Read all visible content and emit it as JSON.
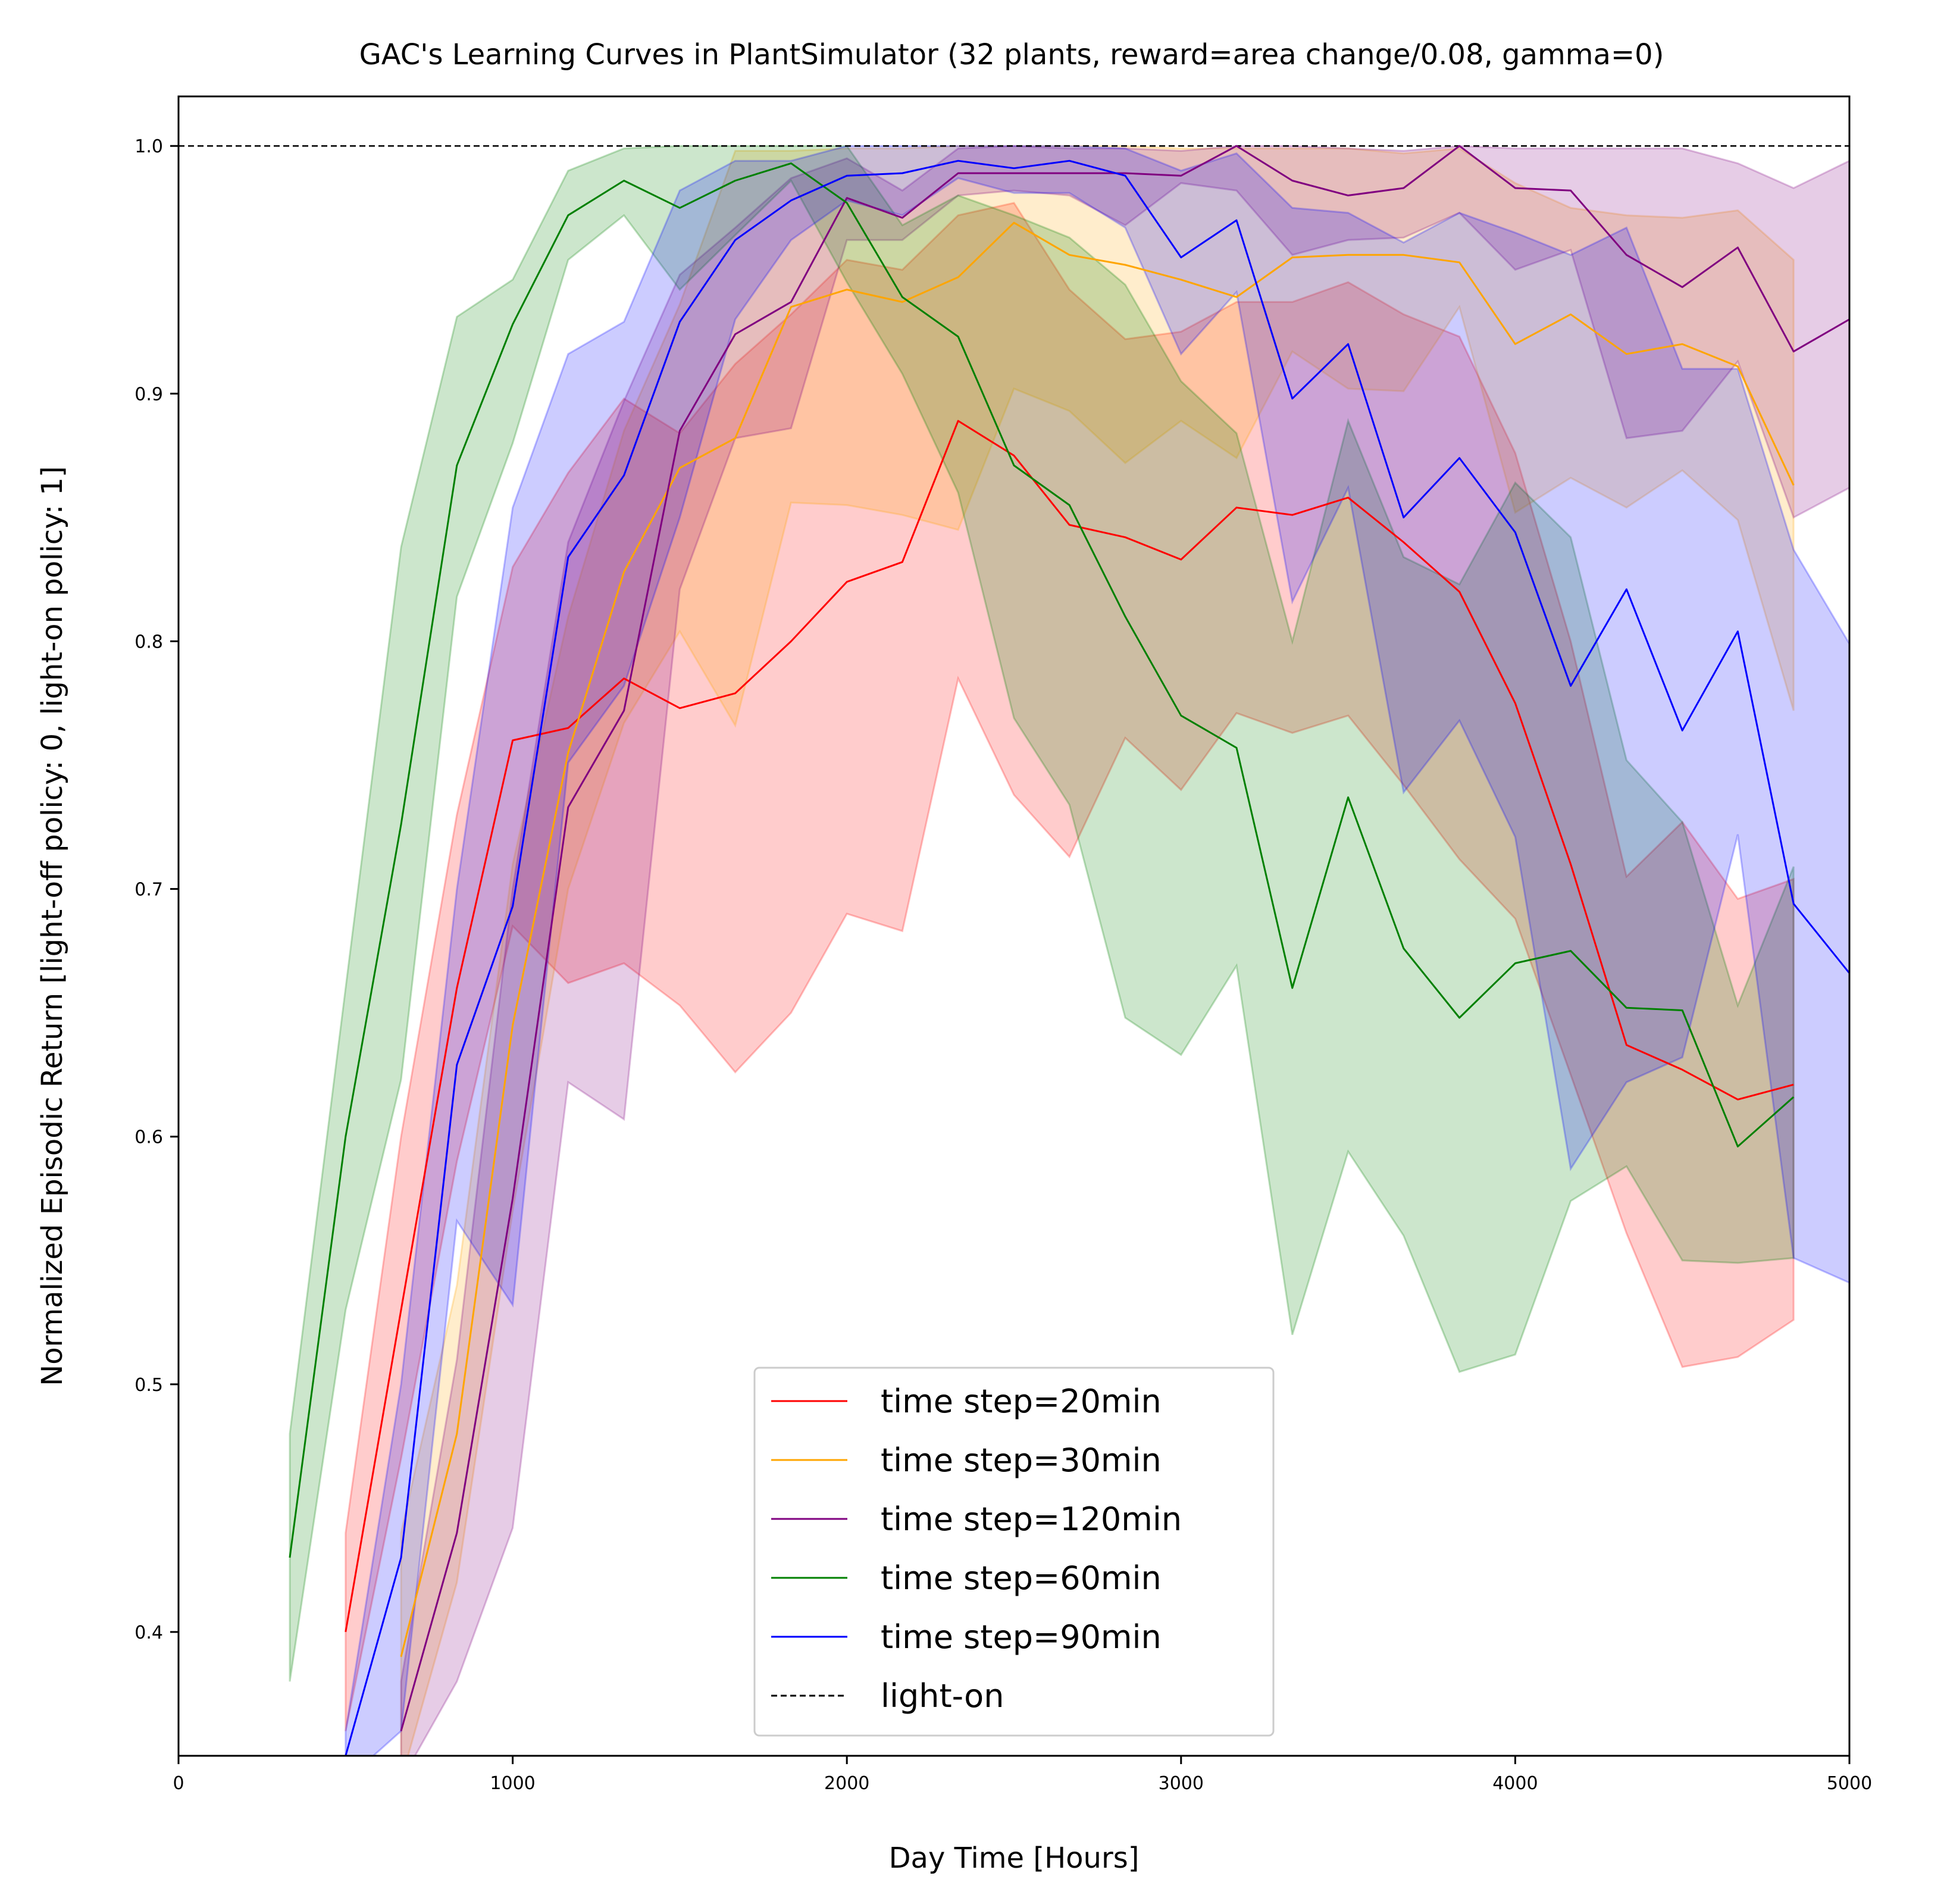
{
  "chart_data": {
    "type": "line",
    "title": "GAC's Learning Curves in PlantSimulator (32 plants, reward=area change/0.08, gamma=0)",
    "xlabel": "Day Time [Hours]",
    "ylabel": "Normalized Episodic Return [light-off policy: 0, light-on policy: 1]",
    "xlim": [
      0,
      5000
    ],
    "ylim": [
      0.35,
      1.02
    ],
    "xticks": [
      0,
      1000,
      2000,
      3000,
      4000,
      5000
    ],
    "yticks": [
      0.4,
      0.5,
      0.6,
      0.7,
      0.8,
      0.9,
      1.0
    ],
    "x_tick_labels": [
      "0",
      "1000",
      "2000",
      "3000",
      "4000",
      "5000"
    ],
    "y_tick_labels": [
      "0.4",
      "0.5",
      "0.6",
      "0.7",
      "0.8",
      "0.9",
      "1.0"
    ],
    "grid": false,
    "legend_position": "lower-center",
    "reference_line": {
      "name": "light-on",
      "y": 1.0,
      "color": "#000000",
      "style": "dashed"
    },
    "x": [
      166,
      333,
      500,
      666,
      833,
      1000,
      1166,
      1333,
      1500,
      1666,
      1833,
      2000,
      2166,
      2333,
      2500,
      2666,
      2833,
      3000,
      3166,
      3333,
      3500,
      3666,
      3833,
      4000,
      4166,
      4333,
      4500,
      4666,
      4833,
      5000
    ],
    "series": [
      {
        "name": "time step=20min",
        "color": "#ff0000",
        "values": [
          null,
          null,
          0.4,
          0.53,
          0.66,
          0.76,
          0.765,
          0.785,
          0.773,
          0.779,
          0.8,
          0.824,
          0.832,
          0.889,
          0.875,
          0.847,
          0.842,
          0.833,
          0.854,
          0.851,
          0.858,
          0.84,
          0.82,
          0.775,
          0.71,
          0.637,
          0.627,
          0.615,
          0.621,
          null
        ],
        "lower": [
          null,
          null,
          0.36,
          0.47,
          0.59,
          0.685,
          0.662,
          0.67,
          0.653,
          0.626,
          0.65,
          0.69,
          0.683,
          0.785,
          0.738,
          0.713,
          0.761,
          0.74,
          0.771,
          0.763,
          0.77,
          0.742,
          0.712,
          0.688,
          0.625,
          0.561,
          0.507,
          0.511,
          0.526,
          null
        ],
        "upper": [
          null,
          null,
          0.44,
          0.6,
          0.73,
          0.83,
          0.868,
          0.898,
          0.884,
          0.912,
          0.932,
          0.954,
          0.95,
          0.972,
          0.977,
          0.942,
          0.922,
          0.925,
          0.937,
          0.937,
          0.945,
          0.932,
          0.923,
          0.876,
          0.8,
          0.705,
          0.727,
          0.696,
          0.704,
          null
        ]
      },
      {
        "name": "time step=30min",
        "color": "#ffa500",
        "values": [
          null,
          null,
          null,
          0.39,
          0.48,
          0.645,
          0.755,
          0.828,
          0.87,
          0.882,
          0.935,
          0.942,
          0.937,
          0.947,
          0.969,
          0.956,
          0.952,
          0.946,
          0.939,
          0.955,
          0.956,
          0.956,
          0.953,
          0.92,
          0.932,
          0.916,
          0.92,
          0.911,
          0.863,
          null
        ],
        "lower": [
          null,
          null,
          null,
          0.34,
          0.42,
          0.57,
          0.7,
          0.767,
          0.804,
          0.766,
          0.856,
          0.855,
          0.851,
          0.845,
          0.902,
          0.893,
          0.872,
          0.889,
          0.874,
          0.917,
          0.902,
          0.901,
          0.935,
          0.852,
          0.866,
          0.854,
          0.869,
          0.849,
          0.772,
          null
        ],
        "upper": [
          null,
          null,
          null,
          0.44,
          0.54,
          0.71,
          0.81,
          0.885,
          0.936,
          0.998,
          0.998,
          0.999,
          0.999,
          1.0,
          1.0,
          1.0,
          1.0,
          0.999,
          0.999,
          0.999,
          0.999,
          0.997,
          0.999,
          0.985,
          0.975,
          0.972,
          0.971,
          0.974,
          0.954,
          null
        ]
      },
      {
        "name": "time step=120min",
        "color": "#800080",
        "values": [
          null,
          null,
          null,
          0.36,
          0.44,
          0.575,
          0.733,
          0.772,
          0.885,
          0.924,
          0.937,
          0.979,
          0.971,
          0.989,
          0.989,
          0.989,
          0.989,
          0.988,
          1.0,
          0.986,
          0.98,
          0.983,
          1.0,
          0.983,
          0.982,
          0.956,
          0.943,
          0.959,
          0.917,
          0.93
        ],
        "lower": [
          null,
          null,
          null,
          0.34,
          0.38,
          0.442,
          0.622,
          0.607,
          0.821,
          0.882,
          0.886,
          0.962,
          0.962,
          0.98,
          0.982,
          0.98,
          0.968,
          0.985,
          0.982,
          0.956,
          0.962,
          0.963,
          0.973,
          0.95,
          0.958,
          0.882,
          0.885,
          0.913,
          0.85,
          0.862
        ],
        "upper": [
          null,
          null,
          null,
          0.38,
          0.51,
          0.7,
          0.84,
          0.897,
          0.948,
          0.967,
          0.987,
          0.995,
          0.982,
          0.999,
          1.0,
          0.999,
          0.999,
          0.998,
          1.0,
          1.0,
          0.999,
          0.998,
          1.0,
          0.999,
          0.999,
          0.999,
          0.999,
          0.993,
          0.983,
          0.994
        ]
      },
      {
        "name": "time step=60min",
        "color": "#008000",
        "values": [
          null,
          0.43,
          0.6,
          0.726,
          0.871,
          0.928,
          0.972,
          0.986,
          0.975,
          0.986,
          0.993,
          0.977,
          0.939,
          0.923,
          0.871,
          0.855,
          0.81,
          0.77,
          0.757,
          0.66,
          0.737,
          0.676,
          0.648,
          0.67,
          0.675,
          0.652,
          0.651,
          0.596,
          0.616,
          null
        ],
        "lower": [
          null,
          0.38,
          0.53,
          0.623,
          0.818,
          0.88,
          0.954,
          0.972,
          0.942,
          0.964,
          0.986,
          0.945,
          0.908,
          0.86,
          0.769,
          0.734,
          0.648,
          0.633,
          0.669,
          0.52,
          0.594,
          0.56,
          0.505,
          0.512,
          0.574,
          0.588,
          0.55,
          0.549,
          0.551,
          null
        ],
        "upper": [
          null,
          0.48,
          0.66,
          0.838,
          0.931,
          0.946,
          0.99,
          0.999,
          1.0,
          1.0,
          1.0,
          1.0,
          0.968,
          0.98,
          0.972,
          0.963,
          0.944,
          0.905,
          0.884,
          0.8,
          0.889,
          0.834,
          0.823,
          0.864,
          0.842,
          0.752,
          0.727,
          0.653,
          0.709,
          null
        ]
      },
      {
        "name": "time step=90min",
        "color": "#0000ff",
        "values": [
          null,
          null,
          0.35,
          0.43,
          0.629,
          0.693,
          0.834,
          0.867,
          0.929,
          0.962,
          0.978,
          0.988,
          0.989,
          0.994,
          0.991,
          0.994,
          0.988,
          0.955,
          0.97,
          0.898,
          0.92,
          0.85,
          0.874,
          0.844,
          0.782,
          0.821,
          0.764,
          0.804,
          0.694,
          0.666
        ],
        "lower": [
          null,
          null,
          0.34,
          0.36,
          0.566,
          0.532,
          0.751,
          0.782,
          0.85,
          0.93,
          0.962,
          0.978,
          0.972,
          0.987,
          0.981,
          0.981,
          0.967,
          0.916,
          0.941,
          0.816,
          0.862,
          0.739,
          0.768,
          0.721,
          0.587,
          0.622,
          0.632,
          0.722,
          0.551,
          0.541
        ],
        "upper": [
          null,
          null,
          0.36,
          0.5,
          0.7,
          0.854,
          0.916,
          0.929,
          0.982,
          0.994,
          0.994,
          1.0,
          1.0,
          1.0,
          1.0,
          1.0,
          0.999,
          0.99,
          0.997,
          0.975,
          0.973,
          0.961,
          0.973,
          0.965,
          0.956,
          0.967,
          0.91,
          0.91,
          0.837,
          0.799
        ]
      }
    ]
  }
}
